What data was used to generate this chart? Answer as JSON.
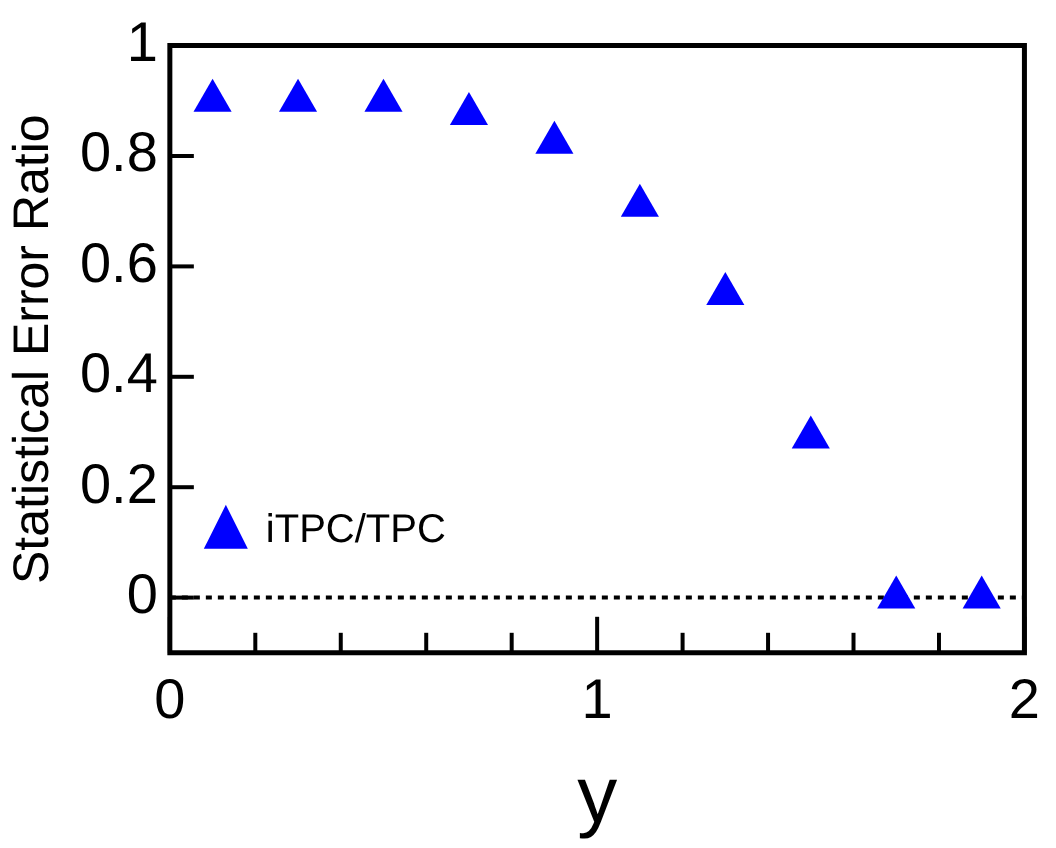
{
  "chart_data": {
    "type": "scatter",
    "xlabel": "y",
    "ylabel": "Statistical Error Ratio",
    "x": [
      0.1,
      0.3,
      0.5,
      0.7,
      0.9,
      1.1,
      1.3,
      1.5,
      1.7,
      1.9
    ],
    "series": [
      {
        "name": "iTPC/TPC",
        "color": "#0000ff",
        "values": [
          0.9,
          0.9,
          0.9,
          0.876,
          0.824,
          0.71,
          0.55,
          0.29,
          0,
          0
        ]
      }
    ],
    "marker": "triangle",
    "legend": "bottom left",
    "grid": false,
    "xlim": [
      0,
      2
    ],
    "xticks": [
      0,
      {
        "value": 0.2,
        "label": null
      },
      {
        "value": 0.4,
        "label": null
      },
      {
        "value": 0.6,
        "label": null
      },
      {
        "value": 0.8,
        "label": null
      },
      1,
      {
        "value": 1.2,
        "label": null
      },
      {
        "value": 1.4,
        "label": null
      },
      {
        "value": 1.6,
        "label": null
      },
      {
        "value": 1.8,
        "label": null
      },
      2
    ],
    "ylim": [
      -0.1,
      1
    ],
    "yticks": [
      0,
      0.2,
      0.4,
      0.6,
      0.8,
      1
    ],
    "ref_lines": [
      {
        "axis": "y",
        "value": 0,
        "color": "#000000",
        "line_style": "dotted"
      }
    ]
  }
}
